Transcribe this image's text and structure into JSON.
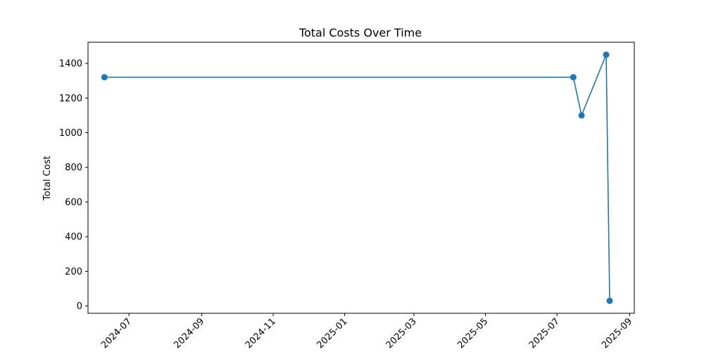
{
  "chart_data": {
    "type": "line",
    "title": "Total Costs Over Time",
    "xlabel": "",
    "ylabel": "Total Cost",
    "x_tick_labels": [
      "2024-07",
      "2024-09",
      "2024-11",
      "2025-01",
      "2025-03",
      "2025-05",
      "2025-07",
      "2025-09"
    ],
    "y_tick_labels": [
      "0",
      "200",
      "400",
      "600",
      "800",
      "1000",
      "1200",
      "1400"
    ],
    "x_ticks": [
      "2024-07-01",
      "2024-09-01",
      "2024-11-01",
      "2025-01-01",
      "2025-03-01",
      "2025-05-01",
      "2025-07-01",
      "2025-09-01"
    ],
    "y_ticks": [
      0,
      200,
      400,
      600,
      800,
      1000,
      1200,
      1400
    ],
    "xlim": [
      "2024-05-27",
      "2025-09-05"
    ],
    "ylim": [
      -42,
      1522
    ],
    "grid": false,
    "series": [
      {
        "color": "#1f77b4",
        "marker": "circle",
        "points": [
          {
            "x": "2024-06-10",
            "y": 1320
          },
          {
            "x": "2025-07-15",
            "y": 1320
          },
          {
            "x": "2025-07-22",
            "y": 1100
          },
          {
            "x": "2025-08-12",
            "y": 1450
          },
          {
            "x": "2025-08-15",
            "y": 30
          }
        ]
      }
    ]
  }
}
